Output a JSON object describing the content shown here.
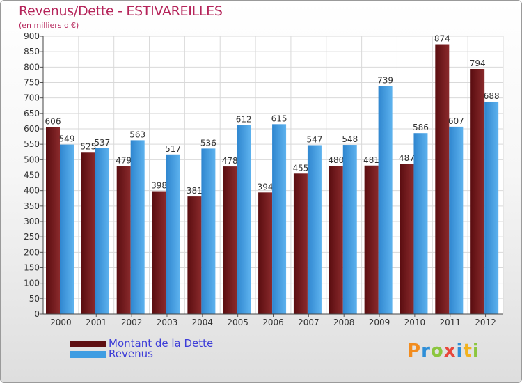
{
  "header": {
    "title": "Revenus/Dette - ESTIVAREILLES",
    "subtitle": "(en milliers d'€)"
  },
  "chart_data": {
    "type": "bar",
    "categories": [
      "2000",
      "2001",
      "2002",
      "2003",
      "2004",
      "2005",
      "2006",
      "2007",
      "2008",
      "2009",
      "2010",
      "2011",
      "2012"
    ],
    "series": [
      {
        "name": "Montant de la Dette",
        "values": [
          606,
          525,
          479,
          398,
          381,
          478,
          394,
          455,
          480,
          481,
          487,
          874,
          794
        ],
        "color": "#7a1f22"
      },
      {
        "name": "Revenus",
        "values": [
          549,
          537,
          563,
          517,
          536,
          612,
          615,
          547,
          548,
          739,
          586,
          607,
          688
        ],
        "color": "#4ea6e6"
      }
    ],
    "ylim": [
      0,
      900
    ],
    "yticks": [
      0,
      50,
      100,
      150,
      200,
      250,
      300,
      350,
      400,
      450,
      500,
      550,
      600,
      650,
      700,
      750,
      800,
      850,
      900
    ],
    "grid": true,
    "legend_position": "bottom-left"
  },
  "legend": {
    "items": [
      {
        "label": "Montant de la Dette",
        "color": "#5e0f12"
      },
      {
        "label": "Revenus",
        "color": "#3f9de2"
      }
    ]
  },
  "logo": {
    "letters": [
      {
        "ch": "P",
        "color": "#f28c1e"
      },
      {
        "ch": "r",
        "color": "#2f8fd8"
      },
      {
        "ch": "o",
        "color": "#8cc63f"
      },
      {
        "ch": "x",
        "color": "#e8473b"
      },
      {
        "ch": "i",
        "color": "#2f8fd8"
      },
      {
        "ch": "t",
        "color": "#f2b21e"
      },
      {
        "ch": "i",
        "color": "#8cc63f"
      }
    ]
  }
}
